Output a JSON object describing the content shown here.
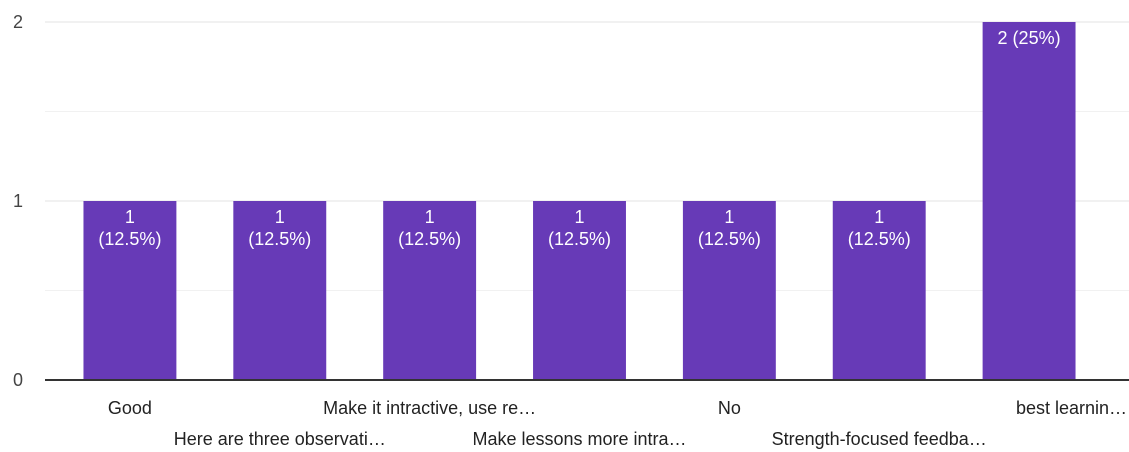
{
  "chart_data": {
    "type": "bar",
    "categories": [
      "Good",
      "Here are three observati…",
      "Make it intractive, use re…",
      "Make lessons more intra…",
      "No",
      "Strength-focused feedba…",
      "best learnin…"
    ],
    "values": [
      1,
      1,
      1,
      1,
      1,
      1,
      2
    ],
    "data_labels": [
      [
        "1",
        "(12.5%)"
      ],
      [
        "1",
        "(12.5%)"
      ],
      [
        "1",
        "(12.5%)"
      ],
      [
        "1",
        "(12.5%)"
      ],
      [
        "1",
        "(12.5%)"
      ],
      [
        "1",
        "(12.5%)"
      ],
      [
        "2 (25%)"
      ]
    ],
    "yticks": [
      "0",
      "1",
      "2"
    ],
    "ylim": [
      0,
      2
    ],
    "grid": true,
    "bar_color": "#673ab7",
    "title": "",
    "xlabel": "",
    "ylabel": ""
  }
}
